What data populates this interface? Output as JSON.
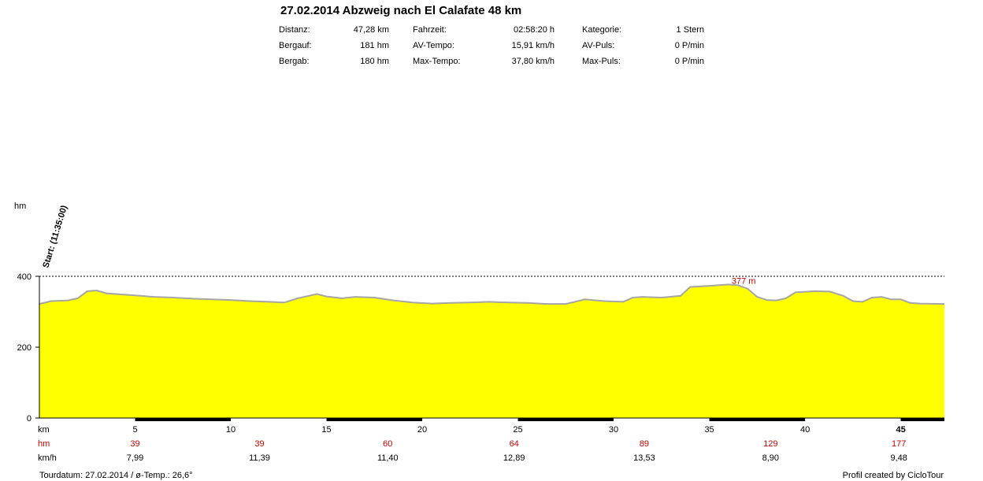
{
  "title": "27.02.2014 Abzweig nach El Calafate 48 km",
  "stats": {
    "distanz_label": "Distanz:",
    "distanz_value": "47,28 km",
    "bergauf_label": "Bergauf:",
    "bergauf_value": "181 hm",
    "bergab_label": "Bergab:",
    "bergab_value": "180 hm",
    "fahrzeit_label": "Fahrzeit:",
    "fahrzeit_value": "02:58:20 h",
    "avtempo_label": "AV-Tempo:",
    "avtempo_value": "15,91 km/h",
    "maxtempo_label": "Max-Tempo:",
    "maxtempo_value": "37,80 km/h",
    "kategorie_label": "Kategorie:",
    "kategorie_value": "1 Stern",
    "avpuls_label": "AV-Puls:",
    "avpuls_value": "0 P/min",
    "maxpuls_label": "Max-Puls:",
    "maxpuls_value": "0 P/min"
  },
  "chart_data": {
    "type": "area",
    "ylabel": "hm",
    "xlabel": "km",
    "xlim": [
      0,
      47.28
    ],
    "ylim": [
      0,
      400
    ],
    "y_ticks": [
      0,
      200,
      400
    ],
    "x_ticks": [
      5,
      10,
      15,
      20,
      25,
      30,
      35,
      40,
      45
    ],
    "start_label": "Start: (11:35:00)",
    "max_annotation": "377 m",
    "max_point": {
      "x": 36.3,
      "y": 377
    },
    "fill_color": "#ffff00",
    "line_color": "#a6a6a6",
    "gridlines_dashed": [
      200,
      400
    ],
    "profile": {
      "x": [
        0,
        0.6,
        1.5,
        2.0,
        2.5,
        3.0,
        3.5,
        4.0,
        5.0,
        6.0,
        7.0,
        8.0,
        9.0,
        10.0,
        11.0,
        12.0,
        12.8,
        13.5,
        14.5,
        15.0,
        15.8,
        16.5,
        17.5,
        18.5,
        19.5,
        20.5,
        21.5,
        22.5,
        23.5,
        24.5,
        25.5,
        26.5,
        27.5,
        28.5,
        29.5,
        30.5,
        31.0,
        31.5,
        32.5,
        33.5,
        34.0,
        35.0,
        36.0,
        36.5,
        37.0,
        37.5,
        38.0,
        38.5,
        39.0,
        39.5,
        40.5,
        41.3,
        42.0,
        42.5,
        43.0,
        43.5,
        44.0,
        44.5,
        45.0,
        45.5,
        46.0,
        47.28
      ],
      "y": [
        322,
        330,
        332,
        338,
        358,
        360,
        352,
        350,
        346,
        342,
        340,
        337,
        335,
        333,
        330,
        328,
        326,
        338,
        350,
        343,
        338,
        342,
        340,
        332,
        326,
        323,
        325,
        326,
        328,
        326,
        325,
        322,
        322,
        335,
        330,
        328,
        340,
        342,
        340,
        345,
        370,
        373,
        377,
        375,
        365,
        342,
        333,
        332,
        338,
        355,
        358,
        357,
        345,
        330,
        328,
        340,
        342,
        335,
        335,
        325,
        323,
        322
      ]
    },
    "bottom_rows": {
      "hm_label": "hm",
      "kmh_label": "km/h",
      "hm_values": [
        {
          "km": 5,
          "text": "39"
        },
        {
          "km": 11.5,
          "text": "39"
        },
        {
          "km": 18.2,
          "text": "60"
        },
        {
          "km": 24.8,
          "text": "64"
        },
        {
          "km": 31.6,
          "text": "89"
        },
        {
          "km": 38.2,
          "text": "129"
        },
        {
          "km": 44.9,
          "text": "177"
        }
      ],
      "kmh_values": [
        {
          "km": 5,
          "text": "7,99"
        },
        {
          "km": 11.5,
          "text": "11,39"
        },
        {
          "km": 18.2,
          "text": "11,40"
        },
        {
          "km": 24.8,
          "text": "12,89"
        },
        {
          "km": 31.6,
          "text": "13,53"
        },
        {
          "km": 38.2,
          "text": "8,90"
        },
        {
          "km": 44.9,
          "text": "9,48"
        }
      ]
    }
  },
  "footer": {
    "left": "Tourdatum: 27.02.2014  /  ø-Temp.: 26,6°",
    "right": "Profil created by CicloTour"
  }
}
